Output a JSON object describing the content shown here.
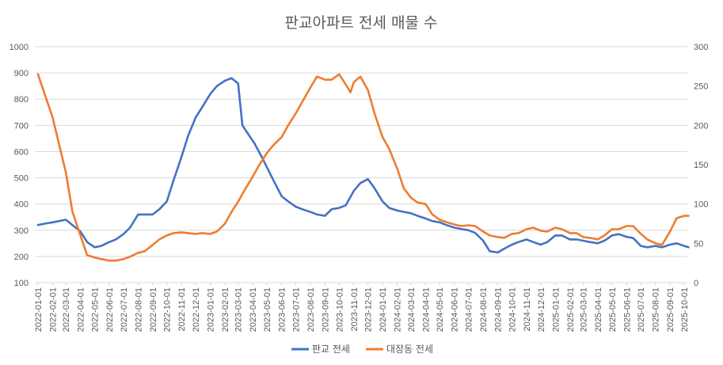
{
  "chart_data": {
    "type": "line",
    "title": "판교아파트 전세 매물 수",
    "xlabel": "",
    "ylabel": "",
    "y2label": "",
    "ylim": [
      100,
      1000
    ],
    "y2lim": [
      0,
      300
    ],
    "y_ticks": [
      "100",
      "200",
      "300",
      "400",
      "500",
      "600",
      "700",
      "800",
      "900",
      "1000"
    ],
    "y2_ticks": [
      "0",
      "50",
      "100",
      "150",
      "200",
      "250",
      "300"
    ],
    "grid": true,
    "legend_position": "bottom",
    "x_ticks": [
      "2022-01-01",
      "2022-02-01",
      "2022-03-01",
      "2022-04-01",
      "2022-05-01",
      "2022-06-01",
      "2022-07-01",
      "2022-08-01",
      "2022-09-01",
      "2022-10-01",
      "2022-11-01",
      "2022-12-01",
      "2023-01-01",
      "2023-02-01",
      "2023-03-01",
      "2023-04-01",
      "2023-05-01",
      "2023-06-01",
      "2023-07-01",
      "2023-08-01",
      "2023-09-01",
      "2023-10-01",
      "2023-11-01",
      "2023-12-01",
      "2024-01-01",
      "2024-02-01",
      "2024-03-01",
      "2024-04-01",
      "2024-05-01",
      "2024-06-01",
      "2024-07-01",
      "2024-08-01",
      "2024-09-01",
      "2024-10-01",
      "2024-11-01",
      "2024-12-01",
      "2025-01-01",
      "2025-02-01",
      "2025-03-01",
      "2025-04-01",
      "2025-05-01",
      "2025-06-01",
      "2025-07-01",
      "2025-08-01",
      "2025-09-01",
      "2025-10-01"
    ],
    "series": [
      {
        "name": "판교 전세",
        "axis": "left",
        "color": "#4472c4",
        "points": [
          [
            "2022-01-01",
            320
          ],
          [
            "2022-01-15",
            325
          ],
          [
            "2022-02-01",
            330
          ],
          [
            "2022-02-15",
            335
          ],
          [
            "2022-03-01",
            340
          ],
          [
            "2022-03-15",
            320
          ],
          [
            "2022-04-01",
            295
          ],
          [
            "2022-04-15",
            255
          ],
          [
            "2022-05-01",
            235
          ],
          [
            "2022-05-15",
            240
          ],
          [
            "2022-06-01",
            255
          ],
          [
            "2022-06-15",
            265
          ],
          [
            "2022-07-01",
            285
          ],
          [
            "2022-07-15",
            310
          ],
          [
            "2022-08-01",
            360
          ],
          [
            "2022-08-15",
            360
          ],
          [
            "2022-09-01",
            360
          ],
          [
            "2022-09-15",
            380
          ],
          [
            "2022-10-01",
            410
          ],
          [
            "2022-10-15",
            490
          ],
          [
            "2022-11-01",
            580
          ],
          [
            "2022-11-15",
            660
          ],
          [
            "2022-12-01",
            730
          ],
          [
            "2022-12-15",
            770
          ],
          [
            "2023-01-01",
            820
          ],
          [
            "2023-01-15",
            850
          ],
          [
            "2023-02-01",
            870
          ],
          [
            "2023-02-15",
            880
          ],
          [
            "2023-03-01",
            860
          ],
          [
            "2023-03-10",
            700
          ],
          [
            "2023-03-25",
            660
          ],
          [
            "2023-04-05",
            630
          ],
          [
            "2023-04-20",
            580
          ],
          [
            "2023-05-01",
            540
          ],
          [
            "2023-05-15",
            490
          ],
          [
            "2023-06-01",
            430
          ],
          [
            "2023-06-15",
            410
          ],
          [
            "2023-07-01",
            390
          ],
          [
            "2023-07-15",
            380
          ],
          [
            "2023-08-01",
            370
          ],
          [
            "2023-08-15",
            360
          ],
          [
            "2023-09-01",
            355
          ],
          [
            "2023-09-15",
            380
          ],
          [
            "2023-10-01",
            385
          ],
          [
            "2023-10-15",
            395
          ],
          [
            "2023-11-01",
            450
          ],
          [
            "2023-11-15",
            480
          ],
          [
            "2023-12-01",
            495
          ],
          [
            "2023-12-15",
            460
          ],
          [
            "2024-01-01",
            410
          ],
          [
            "2024-01-15",
            385
          ],
          [
            "2024-02-01",
            375
          ],
          [
            "2024-02-15",
            370
          ],
          [
            "2024-03-01",
            365
          ],
          [
            "2024-03-15",
            355
          ],
          [
            "2024-04-01",
            345
          ],
          [
            "2024-04-15",
            335
          ],
          [
            "2024-05-01",
            330
          ],
          [
            "2024-05-15",
            320
          ],
          [
            "2024-06-01",
            310
          ],
          [
            "2024-06-15",
            305
          ],
          [
            "2024-07-01",
            300
          ],
          [
            "2024-07-15",
            290
          ],
          [
            "2024-08-01",
            260
          ],
          [
            "2024-08-15",
            220
          ],
          [
            "2024-09-01",
            215
          ],
          [
            "2024-09-15",
            230
          ],
          [
            "2024-10-01",
            245
          ],
          [
            "2024-10-15",
            255
          ],
          [
            "2024-11-01",
            265
          ],
          [
            "2024-11-15",
            255
          ],
          [
            "2024-12-01",
            245
          ],
          [
            "2024-12-15",
            255
          ],
          [
            "2025-01-01",
            280
          ],
          [
            "2025-01-15",
            280
          ],
          [
            "2025-02-01",
            265
          ],
          [
            "2025-02-15",
            265
          ],
          [
            "2025-03-01",
            260
          ],
          [
            "2025-03-15",
            255
          ],
          [
            "2025-04-01",
            250
          ],
          [
            "2025-04-15",
            260
          ],
          [
            "2025-05-01",
            280
          ],
          [
            "2025-05-15",
            285
          ],
          [
            "2025-06-01",
            275
          ],
          [
            "2025-06-15",
            270
          ],
          [
            "2025-07-01",
            240
          ],
          [
            "2025-07-15",
            235
          ],
          [
            "2025-08-01",
            240
          ],
          [
            "2025-08-15",
            235
          ],
          [
            "2025-09-01",
            245
          ],
          [
            "2025-09-15",
            250
          ],
          [
            "2025-10-01",
            240
          ],
          [
            "2025-10-10",
            235
          ]
        ]
      },
      {
        "name": "대장동 전세",
        "axis": "right",
        "color": "#ed7d31",
        "points": [
          [
            "2022-01-01",
            265
          ],
          [
            "2022-01-15",
            240
          ],
          [
            "2022-02-01",
            210
          ],
          [
            "2022-02-15",
            175
          ],
          [
            "2022-03-01",
            140
          ],
          [
            "2022-03-15",
            90
          ],
          [
            "2022-04-01",
            60
          ],
          [
            "2022-04-15",
            35
          ],
          [
            "2022-05-01",
            32
          ],
          [
            "2022-05-15",
            30
          ],
          [
            "2022-06-01",
            28
          ],
          [
            "2022-06-15",
            28
          ],
          [
            "2022-07-01",
            30
          ],
          [
            "2022-07-15",
            33
          ],
          [
            "2022-08-01",
            38
          ],
          [
            "2022-08-15",
            40
          ],
          [
            "2022-09-01",
            48
          ],
          [
            "2022-09-15",
            55
          ],
          [
            "2022-10-01",
            60
          ],
          [
            "2022-10-15",
            63
          ],
          [
            "2022-11-01",
            64
          ],
          [
            "2022-11-15",
            63
          ],
          [
            "2022-12-01",
            62
          ],
          [
            "2022-12-15",
            63
          ],
          [
            "2023-01-01",
            62
          ],
          [
            "2023-01-15",
            65
          ],
          [
            "2023-02-01",
            75
          ],
          [
            "2023-02-15",
            90
          ],
          [
            "2023-03-01",
            103
          ],
          [
            "2023-03-15",
            118
          ],
          [
            "2023-04-01",
            135
          ],
          [
            "2023-04-15",
            150
          ],
          [
            "2023-05-01",
            165
          ],
          [
            "2023-05-15",
            175
          ],
          [
            "2023-06-01",
            185
          ],
          [
            "2023-06-15",
            200
          ],
          [
            "2023-07-01",
            215
          ],
          [
            "2023-07-15",
            230
          ],
          [
            "2023-08-01",
            248
          ],
          [
            "2023-08-15",
            262
          ],
          [
            "2023-09-01",
            258
          ],
          [
            "2023-09-15",
            258
          ],
          [
            "2023-10-01",
            265
          ],
          [
            "2023-10-15",
            252
          ],
          [
            "2023-10-25",
            242
          ],
          [
            "2023-11-01",
            255
          ],
          [
            "2023-11-15",
            262
          ],
          [
            "2023-12-01",
            245
          ],
          [
            "2023-12-15",
            215
          ],
          [
            "2024-01-01",
            185
          ],
          [
            "2024-01-15",
            170
          ],
          [
            "2024-02-01",
            145
          ],
          [
            "2024-02-15",
            120
          ],
          [
            "2024-03-01",
            108
          ],
          [
            "2024-03-15",
            102
          ],
          [
            "2024-04-01",
            100
          ],
          [
            "2024-04-15",
            87
          ],
          [
            "2024-05-01",
            80
          ],
          [
            "2024-05-15",
            77
          ],
          [
            "2024-06-01",
            74
          ],
          [
            "2024-06-15",
            72
          ],
          [
            "2024-07-01",
            73
          ],
          [
            "2024-07-15",
            72
          ],
          [
            "2024-08-01",
            65
          ],
          [
            "2024-08-15",
            60
          ],
          [
            "2024-09-01",
            58
          ],
          [
            "2024-09-15",
            57
          ],
          [
            "2024-10-01",
            62
          ],
          [
            "2024-10-15",
            63
          ],
          [
            "2024-11-01",
            68
          ],
          [
            "2024-11-15",
            70
          ],
          [
            "2024-12-01",
            66
          ],
          [
            "2024-12-15",
            65
          ],
          [
            "2025-01-01",
            70
          ],
          [
            "2025-01-15",
            68
          ],
          [
            "2025-02-01",
            63
          ],
          [
            "2025-02-15",
            63
          ],
          [
            "2025-03-01",
            58
          ],
          [
            "2025-03-15",
            57
          ],
          [
            "2025-04-01",
            55
          ],
          [
            "2025-04-15",
            60
          ],
          [
            "2025-05-01",
            68
          ],
          [
            "2025-05-15",
            68
          ],
          [
            "2025-06-01",
            72
          ],
          [
            "2025-06-15",
            72
          ],
          [
            "2025-07-01",
            62
          ],
          [
            "2025-07-15",
            55
          ],
          [
            "2025-08-01",
            50
          ],
          [
            "2025-08-15",
            48
          ],
          [
            "2025-09-01",
            65
          ],
          [
            "2025-09-15",
            82
          ],
          [
            "2025-10-01",
            85
          ],
          [
            "2025-10-10",
            85
          ]
        ]
      }
    ]
  }
}
